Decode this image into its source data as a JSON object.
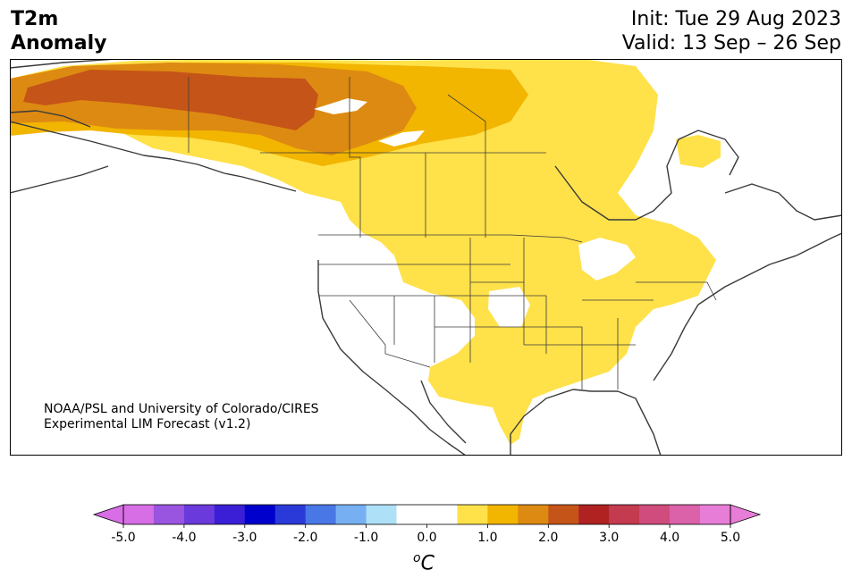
{
  "header": {
    "title_line1": "T2m",
    "title_line2": "Anomaly",
    "init": "Init: Tue 29 Aug 2023",
    "valid": "Valid: 13 Sep – 26 Sep"
  },
  "credit": {
    "line1": "NOAA/PSL and University of Colorado/CIRES",
    "line2": "Experimental LIM Forecast (v1.2)"
  },
  "colorbar": {
    "unit_sup": "o",
    "unit": "C",
    "ticks": [
      "-5.0",
      "-4.0",
      "-3.0",
      "-2.0",
      "-1.0",
      "0.0",
      "1.0",
      "2.0",
      "3.0",
      "4.0",
      "5.0"
    ],
    "bin_colors": [
      "#d76ee6",
      "#9a55e0",
      "#6a3adc",
      "#3a1fd6",
      "#0000cc",
      "#2a3ad9",
      "#4a77e6",
      "#77b0f2",
      "#aee0f8",
      "#ffffff",
      "#ffffff",
      "#ffe14a",
      "#f2b500",
      "#dd8a12",
      "#c55418",
      "#b02222",
      "#c43a4f",
      "#cf4c7c",
      "#db62a8",
      "#e87dd8"
    ],
    "under_color": "#d76ee6",
    "over_color": "#e87dd8"
  },
  "map": {
    "anomaly_colors": {
      "light_yellow": "#ffe14a",
      "gold": "#f2b500",
      "orange": "#dd8a12",
      "dark_orange": "#c55418"
    },
    "coast_color": "#3a3a3a"
  }
}
